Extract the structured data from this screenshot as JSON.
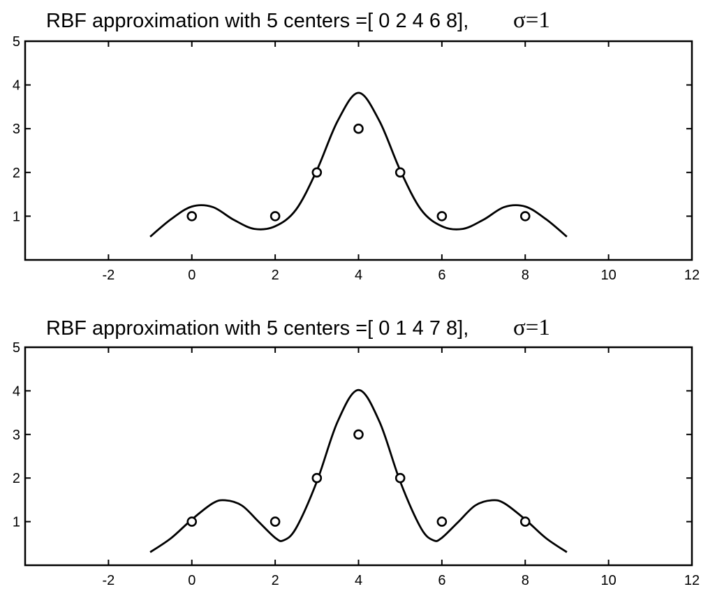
{
  "chart_data": [
    {
      "type": "line",
      "title": "RBF approximation with 5 centers =[ 0 2 4 6 8],",
      "title_suffix": "σ=1",
      "xlim": [
        -4,
        12
      ],
      "ylim": [
        0,
        5
      ],
      "xticks": [
        -2,
        0,
        2,
        4,
        6,
        8,
        10,
        12
      ],
      "yticks": [
        1,
        2,
        3,
        4,
        5
      ],
      "xlabel": "",
      "ylabel": "",
      "grid": false,
      "series": [
        {
          "style": "markers-circle",
          "x": [
            0,
            2,
            3,
            4,
            5,
            6,
            8
          ],
          "y": [
            1,
            1,
            2,
            3,
            2,
            1,
            1
          ]
        },
        {
          "style": "solid-line",
          "x": [
            -1,
            -0.5,
            0,
            0.5,
            1,
            1.5,
            2,
            2.5,
            3,
            3.5,
            4,
            4.5,
            5,
            5.5,
            6,
            6.5,
            7,
            7.5,
            8,
            8.5,
            9
          ],
          "y": [
            0.53,
            0.93,
            1.22,
            1.21,
            0.92,
            0.71,
            0.77,
            1.15,
            2.05,
            3.18,
            3.82,
            3.18,
            2.05,
            1.15,
            0.77,
            0.71,
            0.92,
            1.21,
            1.22,
            0.93,
            0.53
          ]
        }
      ]
    },
    {
      "type": "line",
      "title": "RBF approximation with 5 centers =[ 0 1 4 7 8],",
      "title_suffix": "σ=1",
      "xlim": [
        -4,
        12
      ],
      "ylim": [
        0,
        5
      ],
      "xticks": [
        -2,
        0,
        2,
        4,
        6,
        8,
        10,
        12
      ],
      "yticks": [
        1,
        2,
        3,
        4,
        5
      ],
      "xlabel": "",
      "ylabel": "",
      "grid": false,
      "series": [
        {
          "style": "markers-circle",
          "x": [
            0,
            2,
            3,
            4,
            5,
            6,
            8
          ],
          "y": [
            1,
            1,
            2,
            3,
            2,
            1,
            1
          ]
        },
        {
          "style": "solid-line",
          "x": [
            -1,
            -0.5,
            0,
            0.5,
            0.8,
            1.2,
            1.6,
            2,
            2.2,
            2.5,
            3,
            3.5,
            4,
            4.5,
            5,
            5.5,
            5.8,
            6,
            6.4,
            6.8,
            7.2,
            7.5,
            8,
            8.5,
            9
          ],
          "y": [
            0.3,
            0.62,
            1.05,
            1.42,
            1.49,
            1.37,
            1.0,
            0.63,
            0.57,
            0.85,
            1.92,
            3.3,
            4.02,
            3.3,
            1.92,
            0.85,
            0.57,
            0.63,
            1.0,
            1.37,
            1.49,
            1.42,
            1.05,
            0.62,
            0.3
          ]
        }
      ]
    }
  ]
}
